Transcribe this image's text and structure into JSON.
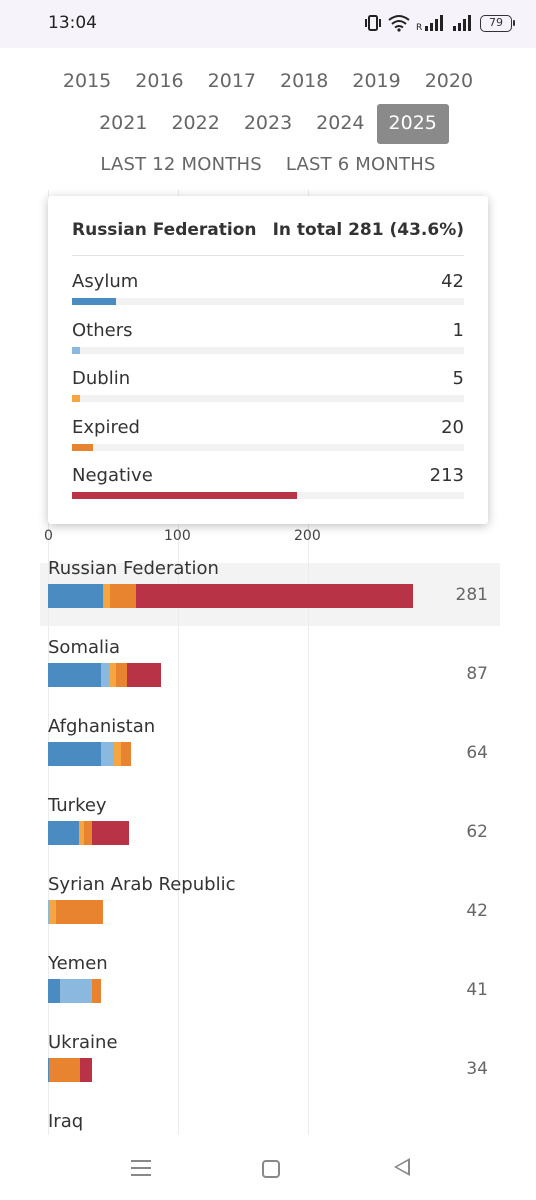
{
  "status": {
    "time": "13:04",
    "battery": "79"
  },
  "years": {
    "row1": [
      "2015",
      "2016",
      "2017",
      "2018",
      "2019",
      "2020"
    ],
    "row2": [
      "2021",
      "2022",
      "2023",
      "2024",
      "2025"
    ],
    "active": "2025",
    "periods": [
      "LAST 12 MONTHS",
      "LAST 6 MONTHS"
    ]
  },
  "colors": {
    "asylum": "#4a8cc2",
    "others": "#8ab8de",
    "dublin": "#f5a640",
    "expired": "#e8842f",
    "negative": "#b83346"
  },
  "tooltip": {
    "country": "Russian Federation",
    "total": "In total 281 (43.6%)",
    "items": [
      {
        "name": "Asylum",
        "value": "42",
        "key": "asylum"
      },
      {
        "name": "Others",
        "value": "1",
        "key": "others"
      },
      {
        "name": "Dublin",
        "value": "5",
        "key": "dublin"
      },
      {
        "name": "Expired",
        "value": "20",
        "key": "expired"
      },
      {
        "name": "Negative",
        "value": "213",
        "key": "negative"
      }
    ],
    "max": 281
  },
  "chart_data": {
    "type": "bar",
    "orientation": "horizontal",
    "stacked": true,
    "xticks": [
      "0",
      "100",
      "200"
    ],
    "xlim": [
      0,
      300
    ],
    "series": [
      {
        "name": "Asylum",
        "key": "asylum"
      },
      {
        "name": "Others",
        "key": "others"
      },
      {
        "name": "Dublin",
        "key": "dublin"
      },
      {
        "name": "Expired",
        "key": "expired"
      },
      {
        "name": "Negative",
        "key": "negative"
      }
    ],
    "categories": [
      {
        "country": "Russian Federation",
        "total": 281,
        "values": [
          42,
          1,
          5,
          20,
          213
        ]
      },
      {
        "country": "Somalia",
        "total": 87,
        "values": [
          41,
          6,
          5,
          9,
          26
        ]
      },
      {
        "country": "Afghanistan",
        "total": 64,
        "values": [
          41,
          10,
          5,
          8,
          0
        ]
      },
      {
        "country": "Turkey",
        "total": 62,
        "values": [
          24,
          0,
          4,
          6,
          28
        ]
      },
      {
        "country": "Syrian Arab Republic",
        "total": 42,
        "values": [
          0,
          1,
          5,
          36,
          0
        ]
      },
      {
        "country": "Yemen",
        "total": 41,
        "values": [
          9,
          24,
          1,
          7,
          0
        ]
      },
      {
        "country": "Ukraine",
        "total": 34,
        "values": [
          1,
          0,
          0,
          24,
          9
        ]
      },
      {
        "country": "Iraq",
        "total": null,
        "values": []
      }
    ]
  }
}
